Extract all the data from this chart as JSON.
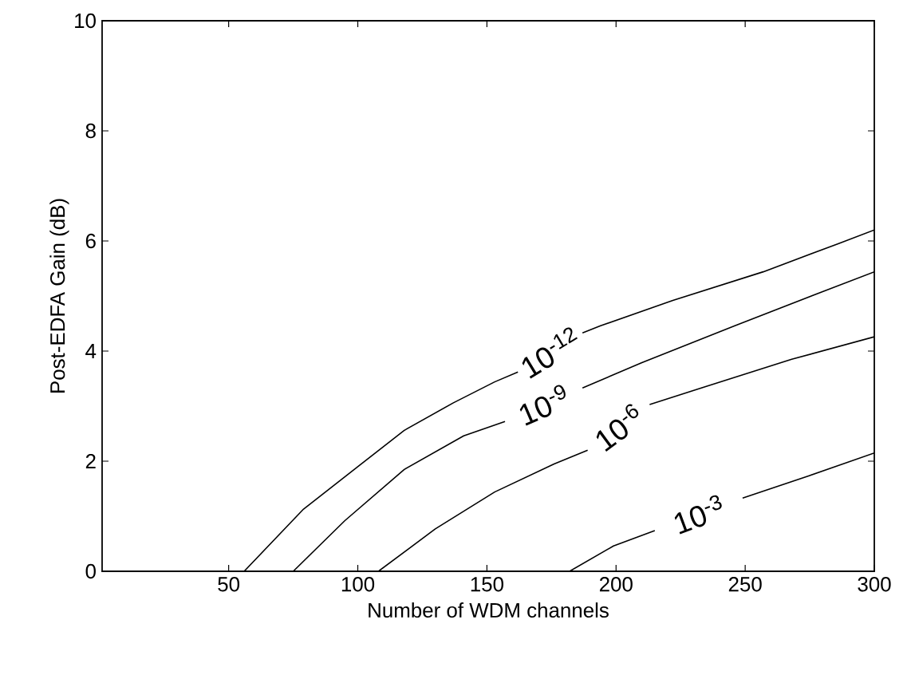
{
  "chart_data": {
    "type": "line",
    "xlabel": "Number of WDM channels",
    "ylabel": "Post-EDFA Gain (dB)",
    "xlim": [
      1,
      300
    ],
    "ylim": [
      0,
      10
    ],
    "xticks": [
      50,
      100,
      150,
      200,
      250,
      300
    ],
    "yticks": [
      0,
      2,
      4,
      6,
      8,
      10
    ],
    "grid": false,
    "marker": "none",
    "line_style": "solid",
    "series": [
      {
        "name": "10$^{-12}$",
        "color": "#000000",
        "x": [
          1,
          56,
          79,
          100,
          118,
          137,
          153,
          162,
          174,
          187,
          194,
          222,
          257,
          286,
          300
        ],
        "values": [
          0,
          0,
          1.13,
          1.9,
          2.56,
          3.06,
          3.44,
          3.62,
          null,
          4.33,
          4.46,
          4.92,
          5.44,
          5.95,
          6.2
        ]
      },
      {
        "name": "10$^{-9}$",
        "color": "#000000",
        "x": [
          1,
          75,
          95,
          118,
          141,
          157,
          172,
          187,
          210,
          246,
          280,
          300
        ],
        "values": [
          0,
          0,
          0.92,
          1.85,
          2.46,
          2.72,
          null,
          3.33,
          3.79,
          4.46,
          5.08,
          5.44
        ]
      },
      {
        "name": "10$^{-6}$",
        "color": "#000000",
        "x": [
          1,
          108,
          130,
          153,
          176,
          189,
          201,
          213,
          233,
          268,
          300
        ],
        "values": [
          0,
          0,
          0.77,
          1.44,
          1.95,
          2.2,
          null,
          3.03,
          3.33,
          3.85,
          4.26
        ]
      },
      {
        "name": "10$^{-3}$",
        "color": "#000000",
        "x": [
          1,
          182,
          199,
          215,
          232,
          249,
          275,
          300
        ],
        "values": [
          0,
          0,
          0.46,
          0.74,
          null,
          1.33,
          1.74,
          2.15
        ]
      }
    ]
  }
}
